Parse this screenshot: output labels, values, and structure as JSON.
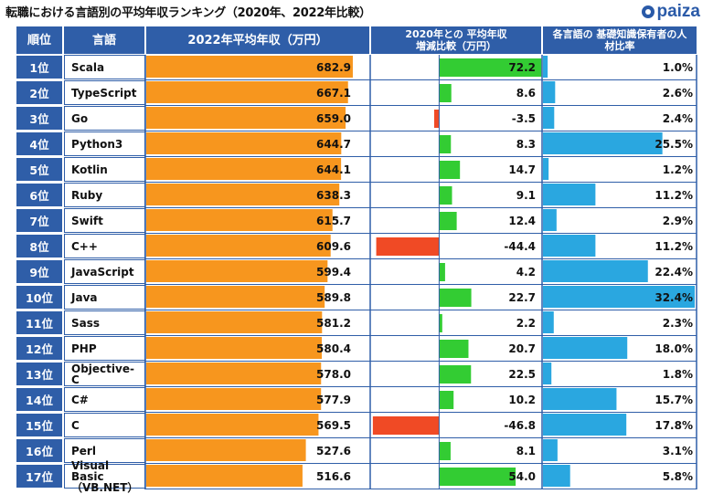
{
  "title": "転職における言語別の平均年収ランキング（2020年、2022年比較）",
  "brand": "paiza",
  "headers": {
    "rank": "順位",
    "language": "言語",
    "salary": "2022年平均年収（万円）",
    "change": "2020年との 平均年収増減比較（万円）",
    "share": "各言語の 基礎知識保有者の人材比率"
  },
  "colors": {
    "header": "#2f5ea8",
    "salary": "#f7961e",
    "increase": "#33cc33",
    "decrease": "#f04a25",
    "share": "#2aa7e0"
  },
  "chart_data": {
    "type": "bar",
    "categories": [
      "Scala",
      "TypeScript",
      "Go",
      "Python3",
      "Kotlin",
      "Ruby",
      "Swift",
      "C++",
      "JavaScript",
      "Java",
      "Sass",
      "PHP",
      "Objective-C",
      "C#",
      "C",
      "Perl",
      "Visual Basic（VB.NET）"
    ],
    "ranks": [
      "1位",
      "2位",
      "3位",
      "4位",
      "5位",
      "6位",
      "7位",
      "8位",
      "9位",
      "10位",
      "11位",
      "12位",
      "13位",
      "14位",
      "15位",
      "16位",
      "17位"
    ],
    "series": [
      {
        "name": "2022年平均年収（万円）",
        "values": [
          682.9,
          667.1,
          659.0,
          644.7,
          644.1,
          638.3,
          615.7,
          609.6,
          599.4,
          589.8,
          581.2,
          580.4,
          578.0,
          577.9,
          569.5,
          527.6,
          516.6
        ]
      },
      {
        "name": "2020年との平均年収増減比較（万円）",
        "values": [
          72.2,
          8.6,
          -3.5,
          8.3,
          14.7,
          9.1,
          12.4,
          -44.4,
          4.2,
          22.7,
          2.2,
          20.7,
          22.5,
          10.2,
          -46.8,
          8.1,
          54.0
        ]
      },
      {
        "name": "各言語の基礎知識保有者の人材比率（%）",
        "values": [
          1.0,
          2.6,
          2.4,
          25.5,
          1.2,
          11.2,
          2.9,
          11.2,
          22.4,
          32.4,
          2.3,
          18.0,
          1.8,
          15.7,
          17.8,
          3.1,
          5.8
        ]
      }
    ],
    "labels": {
      "salary": [
        "682.9",
        "667.1",
        "659.0",
        "644.7",
        "644.1",
        "638.3",
        "615.7",
        "609.6",
        "599.4",
        "589.8",
        "581.2",
        "580.4",
        "578.0",
        "577.9",
        "569.5",
        "527.6",
        "516.6"
      ],
      "change": [
        "72.2",
        "8.6",
        "-3.5",
        "8.3",
        "14.7",
        "9.1",
        "12.4",
        "-44.4",
        "4.2",
        "22.7",
        "2.2",
        "20.7",
        "22.5",
        "10.2",
        "-46.8",
        "8.1",
        "54.0"
      ],
      "share": [
        "1.0%",
        "2.6%",
        "2.4%",
        "25.5%",
        "1.2%",
        "11.2%",
        "2.9%",
        "11.2%",
        "22.4%",
        "32.4%",
        "2.3%",
        "18.0%",
        "1.8%",
        "15.7%",
        "17.8%",
        "3.1%",
        "5.8%"
      ]
    },
    "salary_axis": [
      0,
      683
    ],
    "change_axis": [
      -48,
      72
    ],
    "share_axis": [
      0,
      32.4
    ]
  }
}
